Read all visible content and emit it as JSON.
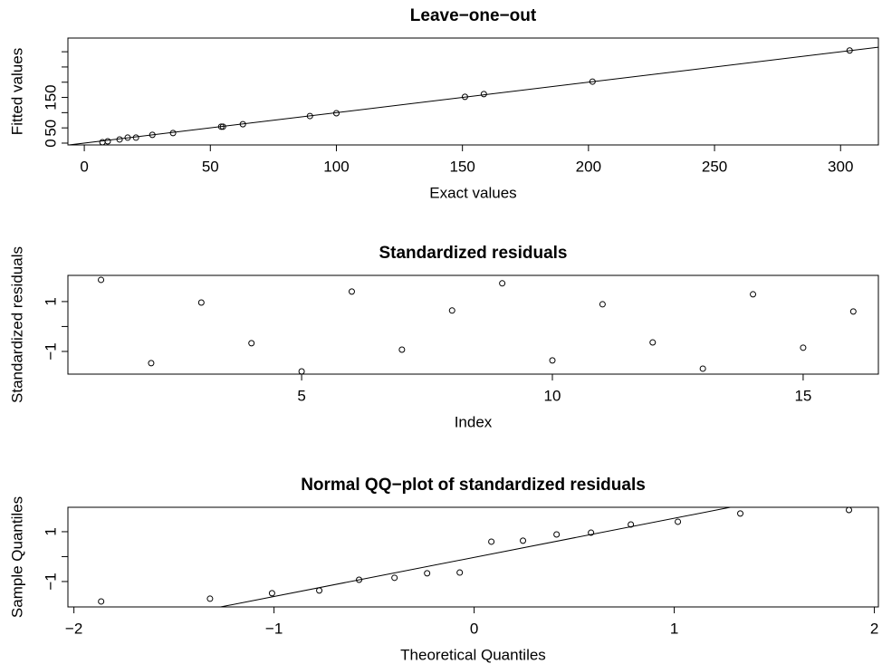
{
  "chart_data": [
    {
      "type": "scatter",
      "title": "Leave−one−out",
      "x_label": "Exact values",
      "y_label": "Fitted values",
      "x": [
        7.2,
        9.3,
        14,
        17.2,
        20.5,
        27,
        35.2,
        54.3,
        55,
        62.9,
        89.5,
        100,
        151,
        158.5,
        201.6,
        303.6
      ],
      "values": [
        3,
        6,
        12,
        18,
        18,
        27,
        33,
        54,
        54,
        62,
        89,
        98,
        152,
        161,
        202,
        304
      ],
      "xlim": [
        -6.5,
        315
      ],
      "ylim": [
        -6,
        345
      ],
      "xticks": [
        0,
        50,
        100,
        150,
        200,
        250,
        300
      ],
      "yticks": [
        0,
        50,
        150
      ],
      "yticks_unlabeled": [
        100,
        200,
        250,
        300
      ],
      "abline": {
        "intercept": 0,
        "slope": 1
      },
      "color": "#000000"
    },
    {
      "type": "scatter",
      "title": "Standardized residuals",
      "x_label": "Index",
      "y_label": "Standardized residuals",
      "x": [
        1,
        2,
        3,
        4,
        5,
        6,
        7,
        8,
        9,
        10,
        11,
        12,
        13,
        14,
        15,
        16
      ],
      "values": [
        1.87,
        -1.47,
        0.96,
        -0.67,
        -1.8,
        1.4,
        -0.93,
        0.64,
        1.73,
        -1.36,
        0.89,
        -0.64,
        -1.69,
        1.29,
        -0.85,
        0.6
      ],
      "xlim": [
        0.34,
        16.5
      ],
      "ylim": [
        -1.91,
        2.05
      ],
      "xticks": [
        5,
        10,
        15
      ],
      "yticks": [
        {
          "value": -1,
          "label": "−1"
        },
        1
      ],
      "yticks_unlabeled": [
        0
      ],
      "color": "#000000"
    },
    {
      "type": "scatter",
      "title": "Normal QQ−plot of standardized residuals",
      "x_label": "Theoretical Quantiles",
      "y_label": "Sample Quantiles",
      "x": [
        -1.864,
        -1.32,
        -1.01,
        -0.774,
        -0.575,
        -0.398,
        -0.235,
        -0.072,
        0.086,
        0.244,
        0.412,
        0.584,
        0.783,
        1.018,
        1.33,
        1.873
      ],
      "values": [
        -1.8,
        -1.69,
        -1.47,
        -1.36,
        -0.93,
        -0.85,
        -0.67,
        -0.64,
        0.6,
        0.64,
        0.89,
        0.96,
        1.29,
        1.4,
        1.73,
        1.87
      ],
      "xlim": [
        -2.03,
        2.02
      ],
      "ylim": [
        -2.02,
        1.98
      ],
      "xticks": [
        {
          "value": -2,
          "label": "−2"
        },
        {
          "value": -1,
          "label": "−1"
        },
        0,
        1,
        2
      ],
      "yticks": [
        {
          "value": -1,
          "label": "−1"
        },
        1
      ],
      "yticks_unlabeled": [
        0
      ],
      "abline": {
        "intercept": -0.03,
        "slope": 1.57
      },
      "color": "#000000"
    }
  ]
}
